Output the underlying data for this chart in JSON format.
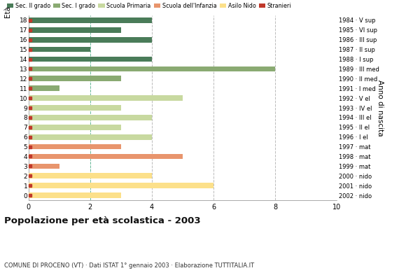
{
  "title": "Popolazione per età scolastica - 2003",
  "subtitle": "COMUNE DI PROCENO (VT) · Dati ISTAT 1° gennaio 2003 · Elaborazione TUTTITALIA.IT",
  "ylabel_left": "Età",
  "ylabel_right": "Anno di nascita",
  "xlim": [
    0,
    10
  ],
  "xticks": [
    0,
    2,
    4,
    6,
    8,
    10
  ],
  "ages": [
    18,
    17,
    16,
    15,
    14,
    13,
    12,
    11,
    10,
    9,
    8,
    7,
    6,
    5,
    4,
    3,
    2,
    1,
    0
  ],
  "years": [
    "1984 · V sup",
    "1985 · VI sup",
    "1986 · III sup",
    "1987 · II sup",
    "1988 · I sup",
    "1989 · III med",
    "1990 · II med",
    "1991 · I med",
    "1992 · V el",
    "1993 · IV el",
    "1994 · III el",
    "1995 · II el",
    "1996 · I el",
    "1997 · mat",
    "1998 · mat",
    "1999 · mat",
    "2000 · nido",
    "2001 · nido",
    "2002 · nido"
  ],
  "values": [
    4,
    3,
    4,
    2,
    4,
    8,
    3,
    1,
    5,
    3,
    4,
    3,
    4,
    3,
    5,
    1,
    4,
    6,
    3
  ],
  "colors": [
    "#4a7c59",
    "#4a7c59",
    "#4a7c59",
    "#4a7c59",
    "#4a7c59",
    "#8aaa72",
    "#8aaa72",
    "#8aaa72",
    "#c8d9a0",
    "#c8d9a0",
    "#c8d9a0",
    "#c8d9a0",
    "#c8d9a0",
    "#e8956d",
    "#e8956d",
    "#e8956d",
    "#fce08a",
    "#fce08a",
    "#fce08a"
  ],
  "legend_labels": [
    "Sec. II grado",
    "Sec. I grado",
    "Scuola Primaria",
    "Scuola dell'Infanzia",
    "Asilo Nido",
    "Stranieri"
  ],
  "legend_colors": [
    "#4a7c59",
    "#8aaa72",
    "#c8d9a0",
    "#e8956d",
    "#fce08a",
    "#c0392b"
  ],
  "background_color": "#ffffff",
  "grid_color": "#bbbbbb",
  "dashed_color": "#66bb99",
  "red_color": "#c0392b",
  "bar_height": 0.55
}
